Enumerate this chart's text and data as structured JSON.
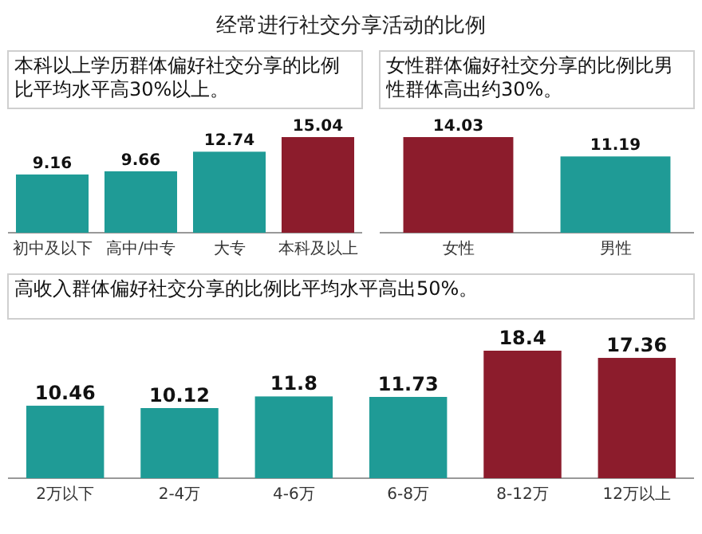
{
  "chart_data": [
    {
      "type": "bar",
      "title": "经常进行社交分享活动的比例",
      "subtitle": "本科以上学历群体偏好社交分享的比例比平均水平高30%以上。",
      "categories": [
        "初中及以下",
        "高中/中专",
        "大专",
        "本科及以上"
      ],
      "values": [
        9.16,
        9.66,
        12.74,
        15.04
      ],
      "colors": [
        "#1f9b96",
        "#1f9b96",
        "#1f9b96",
        "#8c1c2c"
      ],
      "data_labels": true
    },
    {
      "type": "bar",
      "title": "女性群体偏好社交分享的比例比男性群体高出约30%。",
      "categories": [
        "女性",
        "男性"
      ],
      "values": [
        14.03,
        11.19
      ],
      "colors": [
        "#8c1c2c",
        "#1f9b96"
      ],
      "data_labels": true
    },
    {
      "type": "bar",
      "title": "高收入群体偏好社交分享的比例比平均水平高出50%。",
      "categories": [
        "2万以下",
        "2-4万",
        "4-6万",
        "6-8万",
        "8-12万",
        "12万以上"
      ],
      "values": [
        10.46,
        10.12,
        11.8,
        11.73,
        18.4,
        17.36
      ],
      "colors": [
        "#1f9b96",
        "#1f9b96",
        "#1f9b96",
        "#1f9b96",
        "#8c1c2c",
        "#8c1c2c"
      ],
      "data_labels": true
    }
  ]
}
